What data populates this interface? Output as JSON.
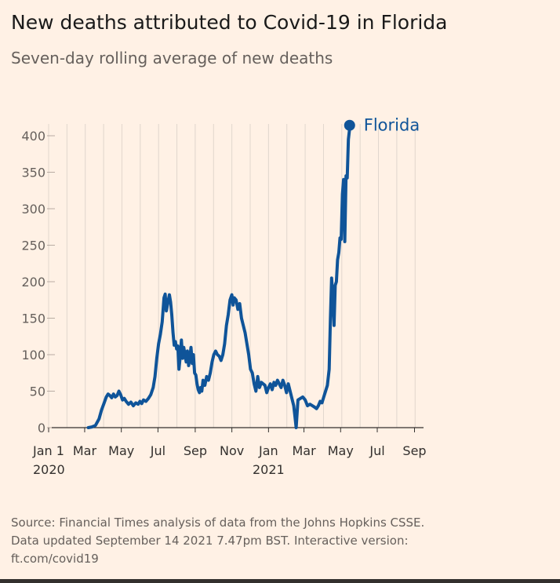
{
  "header": {
    "title": "New deaths attributed to Covid-19 in Florida",
    "subtitle": "Seven-day rolling average of new deaths"
  },
  "footer": {
    "line1": "Source: Financial Times analysis of data from the Johns Hopkins CSSE.",
    "line2": "Data updated September 14 2021 7.47pm BST. Interactive version:",
    "line3": "ft.com/covid19"
  },
  "colors": {
    "background": "#FFF1E5",
    "series": "#0F5499",
    "grid": "#E0D6CD",
    "axis": "#33302e"
  },
  "chart_data": {
    "type": "line",
    "title": "New deaths attributed to Covid-19 in Florida",
    "subtitle": "Seven-day rolling average of new deaths",
    "xlabel": "",
    "ylabel": "",
    "ylim": [
      0,
      400
    ],
    "yticks": [
      0,
      50,
      100,
      150,
      200,
      250,
      300,
      350,
      400
    ],
    "xlim_days": [
      0,
      620
    ],
    "xticks": [
      {
        "day": 0,
        "label": "Jan 1",
        "sub": "2020"
      },
      {
        "day": 60,
        "label": "Mar",
        "sub": ""
      },
      {
        "day": 121,
        "label": "May",
        "sub": ""
      },
      {
        "day": 182,
        "label": "Jul",
        "sub": ""
      },
      {
        "day": 244,
        "label": "Sep",
        "sub": ""
      },
      {
        "day": 305,
        "label": "Nov",
        "sub": ""
      },
      {
        "day": 366,
        "label": "Jan",
        "sub": "2021"
      },
      {
        "day": 425,
        "label": "Mar",
        "sub": ""
      },
      {
        "day": 486,
        "label": "May",
        "sub": ""
      },
      {
        "day": 547,
        "label": "Jul",
        "sub": ""
      },
      {
        "day": 609,
        "label": "Sep",
        "sub": ""
      }
    ],
    "grid": "vertical-monthly",
    "legend": "end-of-line",
    "series": [
      {
        "name": "Florida",
        "points": [
          [
            66,
            0
          ],
          [
            72,
            1
          ],
          [
            78,
            3
          ],
          [
            84,
            12
          ],
          [
            88,
            24
          ],
          [
            92,
            33
          ],
          [
            96,
            42
          ],
          [
            99,
            46
          ],
          [
            102,
            44
          ],
          [
            105,
            41
          ],
          [
            108,
            46
          ],
          [
            111,
            42
          ],
          [
            114,
            44
          ],
          [
            117,
            50
          ],
          [
            120,
            45
          ],
          [
            123,
            38
          ],
          [
            126,
            40
          ],
          [
            129,
            36
          ],
          [
            133,
            32
          ],
          [
            137,
            35
          ],
          [
            141,
            30
          ],
          [
            145,
            34
          ],
          [
            149,
            32
          ],
          [
            152,
            36
          ],
          [
            155,
            33
          ],
          [
            158,
            38
          ],
          [
            162,
            36
          ],
          [
            166,
            40
          ],
          [
            170,
            45
          ],
          [
            174,
            55
          ],
          [
            177,
            70
          ],
          [
            180,
            95
          ],
          [
            183,
            115
          ],
          [
            186,
            128
          ],
          [
            189,
            145
          ],
          [
            192,
            178
          ],
          [
            194,
            183
          ],
          [
            196,
            160
          ],
          [
            198,
            170
          ],
          [
            201,
            182
          ],
          [
            203,
            172
          ],
          [
            205,
            155
          ],
          [
            207,
            130
          ],
          [
            209,
            113
          ],
          [
            211,
            118
          ],
          [
            213,
            108
          ],
          [
            215,
            112
          ],
          [
            217,
            80
          ],
          [
            219,
            98
          ],
          [
            221,
            120
          ],
          [
            223,
            95
          ],
          [
            225,
            110
          ],
          [
            227,
            100
          ],
          [
            229,
            90
          ],
          [
            231,
            105
          ],
          [
            233,
            85
          ],
          [
            235,
            95
          ],
          [
            237,
            110
          ],
          [
            239,
            88
          ],
          [
            241,
            100
          ],
          [
            243,
            75
          ],
          [
            245,
            72
          ],
          [
            247,
            60
          ],
          [
            249,
            52
          ],
          [
            251,
            48
          ],
          [
            253,
            55
          ],
          [
            255,
            50
          ],
          [
            257,
            65
          ],
          [
            260,
            58
          ],
          [
            263,
            70
          ],
          [
            266,
            65
          ],
          [
            269,
            75
          ],
          [
            272,
            90
          ],
          [
            275,
            100
          ],
          [
            278,
            105
          ],
          [
            281,
            100
          ],
          [
            284,
            98
          ],
          [
            287,
            92
          ],
          [
            290,
            100
          ],
          [
            293,
            115
          ],
          [
            296,
            140
          ],
          [
            299,
            155
          ],
          [
            302,
            175
          ],
          [
            305,
            182
          ],
          [
            307,
            168
          ],
          [
            309,
            178
          ],
          [
            312,
            175
          ],
          [
            315,
            162
          ],
          [
            318,
            170
          ],
          [
            321,
            150
          ],
          [
            324,
            140
          ],
          [
            327,
            130
          ],
          [
            330,
            115
          ],
          [
            333,
            100
          ],
          [
            336,
            80
          ],
          [
            339,
            75
          ],
          [
            342,
            60
          ],
          [
            345,
            50
          ],
          [
            348,
            70
          ],
          [
            351,
            55
          ],
          [
            354,
            62
          ],
          [
            357,
            60
          ],
          [
            360,
            58
          ],
          [
            363,
            48
          ],
          [
            366,
            55
          ],
          [
            369,
            60
          ],
          [
            372,
            52
          ],
          [
            375,
            62
          ],
          [
            378,
            58
          ],
          [
            381,
            65
          ],
          [
            384,
            60
          ],
          [
            387,
            55
          ],
          [
            390,
            65
          ],
          [
            393,
            58
          ],
          [
            396,
            48
          ],
          [
            399,
            60
          ],
          [
            402,
            50
          ],
          [
            405,
            40
          ],
          [
            408,
            30
          ],
          [
            410,
            15
          ],
          [
            412,
            0
          ],
          [
            415,
            38
          ],
          [
            419,
            40
          ],
          [
            423,
            42
          ],
          [
            427,
            38
          ],
          [
            431,
            30
          ],
          [
            435,
            32
          ],
          [
            439,
            30
          ],
          [
            443,
            28
          ],
          [
            446,
            26
          ],
          [
            449,
            30
          ],
          [
            452,
            36
          ],
          [
            455,
            34
          ],
          [
            458,
            42
          ],
          [
            461,
            50
          ],
          [
            464,
            58
          ],
          [
            467,
            80
          ],
          [
            469,
            150
          ],
          [
            471,
            205
          ],
          [
            473,
            180
          ],
          [
            475,
            140
          ],
          [
            477,
            195
          ],
          [
            479,
            200
          ],
          [
            481,
            230
          ],
          [
            483,
            240
          ],
          [
            485,
            260
          ],
          [
            487,
            258
          ],
          [
            489,
            320
          ],
          [
            491,
            340
          ],
          [
            493,
            255
          ],
          [
            495,
            345
          ],
          [
            497,
            342
          ],
          [
            499,
            395
          ],
          [
            501,
            410
          ]
        ]
      }
    ]
  }
}
